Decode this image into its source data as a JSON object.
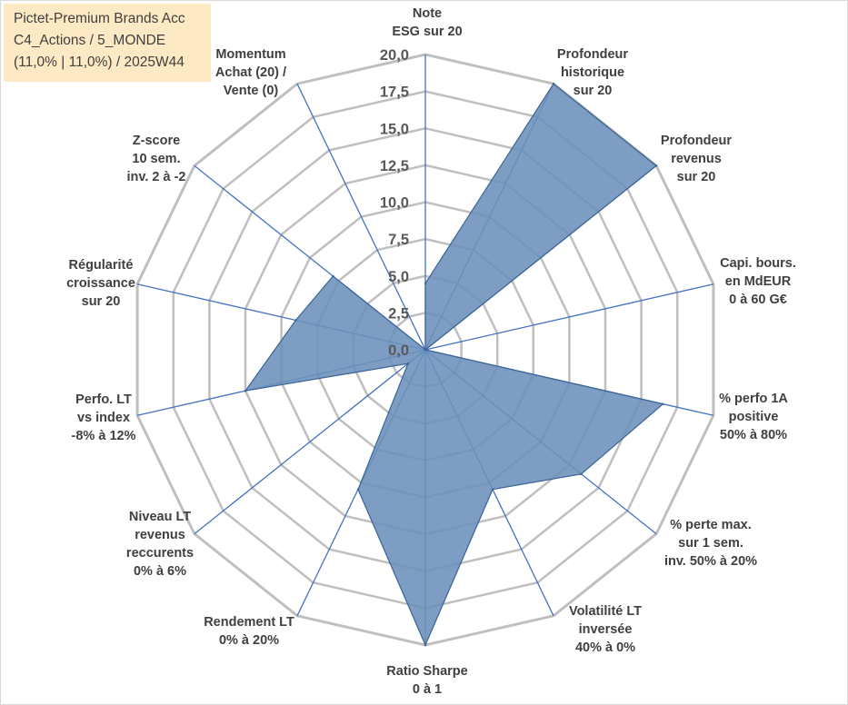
{
  "title_lines": [
    "Pictet-Premium Brands Acc",
    "C4_Actions / 5_MONDE",
    "(11,0% | 11,0%) / 2025W44"
  ],
  "chart_data": {
    "type": "radar",
    "title": "Pictet-Premium Brands Acc C4_Actions / 5_MONDE (11,0% | 11,0%) / 2025W44",
    "rlim": [
      0,
      20
    ],
    "rticks": [
      "0,0",
      "2,5",
      "5,0",
      "7,5",
      "10,0",
      "12,5",
      "15,0",
      "17,5",
      "20,0"
    ],
    "categories": [
      "Note ESG sur 20",
      "Profondeur historique sur 20",
      "Profondeur revenus sur 20",
      "Capi. bours. en MdEUR 0 à 60 G€",
      "% perfo 1A positive 50% à 80%",
      "% perte max. sur 1 sem. inv. 50% à 20%",
      "Volatilité LT inversée 40% à 0%",
      "Ratio Sharpe 0 à 1",
      "Rendement LT 0% à 20%",
      "Niveau LT revenus reccurents 0% à 6%",
      "Perfo. LT vs index -8% à 12%",
      "Régularité croissance sur 20",
      "Z-score 10 sem. inv. 2 à -2",
      "Momentum Achat (20) / Vente (0)"
    ],
    "category_lines": [
      [
        "Note",
        "ESG sur 20"
      ],
      [
        "Profondeur",
        "historique",
        "sur 20"
      ],
      [
        "Profondeur",
        "revenus",
        "sur 20"
      ],
      [
        "Capi. bours.",
        "en MdEUR",
        "0 à 60 G€"
      ],
      [
        "% perfo 1A",
        "positive",
        "50% à 80%"
      ],
      [
        "% perte max.",
        "sur 1 sem.",
        "inv. 50% à 20%"
      ],
      [
        "Volatilité LT",
        "inversée",
        "40% à 0%"
      ],
      [
        "Ratio Sharpe",
        "0 à 1"
      ],
      [
        "Rendement LT",
        "0% à 20%"
      ],
      [
        "Niveau LT",
        "revenus",
        "reccurents",
        "0% à 6%"
      ],
      [
        "Perfo. LT",
        "vs index",
        "-8% à 12%"
      ],
      [
        "Régularité",
        "croissance",
        "sur 20"
      ],
      [
        "Z-score",
        "10 sem.",
        "inv. 2 à -2"
      ],
      [
        "Momentum",
        "Achat (20) /",
        "Vente (0)"
      ]
    ],
    "series": [
      {
        "name": "Pictet-Premium Brands Acc",
        "values": [
          4.5,
          20,
          20,
          0,
          16.5,
          13.5,
          10.5,
          20,
          10.5,
          1.5,
          12.5,
          9.0,
          8.0,
          0
        ],
        "color": "#4f79aa"
      }
    ]
  },
  "colors": {
    "fill": "#6b8fbb",
    "stroke": "#3a6496",
    "grid": "#bfbfbf",
    "spoke": "#4472c4",
    "title_bg": "#fde9c3"
  }
}
